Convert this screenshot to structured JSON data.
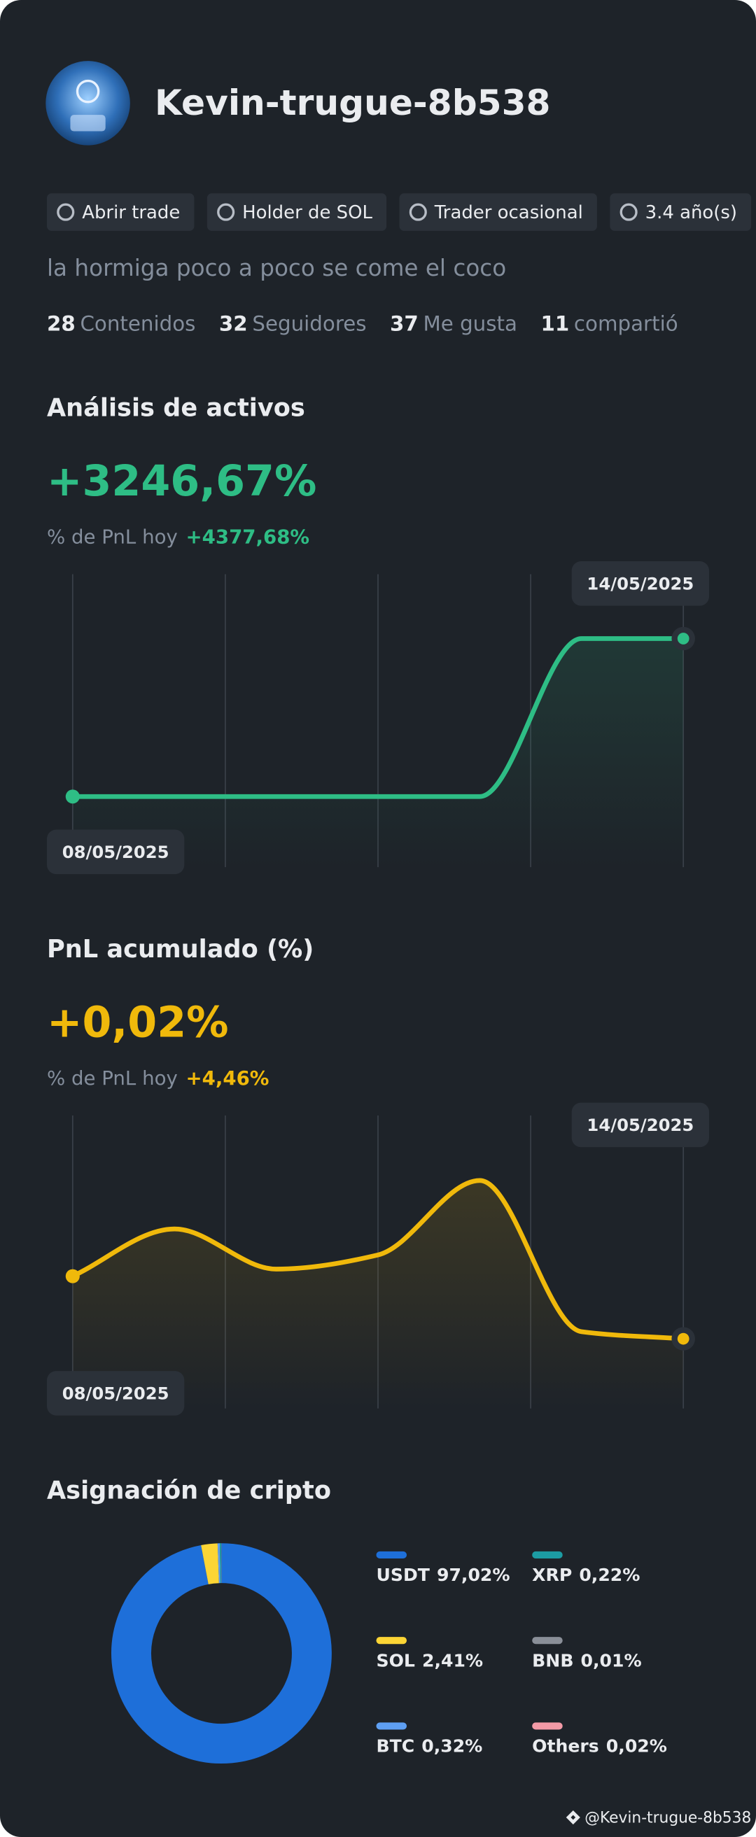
{
  "profile": {
    "name": "Kevin-trugue-8b538",
    "tags": [
      "Abrir trade",
      "Holder de SOL",
      "Trader ocasional",
      "3.4 año(s)"
    ],
    "bio": "la hormiga poco a poco se come el coco",
    "stats": [
      {
        "value": 28,
        "label": "Contenidos"
      },
      {
        "value": 32,
        "label": "Seguidores"
      },
      {
        "value": 37,
        "label": "Me gusta"
      },
      {
        "value": 11,
        "label": "compartió"
      }
    ]
  },
  "chart_data": [
    {
      "type": "line",
      "title": "Análisis de activos",
      "headline": "+3246,67%",
      "today_label": "% de PnL hoy",
      "today_value": "+4377,68%",
      "x": [
        "08/05/2025",
        null,
        null,
        null,
        null,
        null,
        "14/05/2025"
      ],
      "series": [
        {
          "color": "#2ebd85",
          "values": [
            0,
            0,
            0,
            0,
            0,
            3246.67,
            3246.67
          ]
        }
      ],
      "ylim": [
        -1450,
        4570
      ]
    },
    {
      "type": "line",
      "title": "PnL acumulado (%)",
      "headline": "+0,02%",
      "today_label": "% de PnL hoy",
      "today_value": "+4,46%",
      "x": [
        "08/05/2025",
        null,
        null,
        null,
        null,
        null,
        "14/05/2025"
      ],
      "series": [
        {
          "color": "#f0b90b",
          "values": [
            2.67,
            4.67,
            2.97,
            3.57,
            6.72,
            0.32,
            0.02
          ]
        }
      ],
      "ylim": [
        -2.93,
        9.47
      ]
    },
    {
      "type": "pie",
      "title": "Asignación de cripto",
      "categories": [
        "USDT",
        "SOL",
        "BTC",
        "XRP",
        "BNB",
        "Others"
      ],
      "values": [
        97.02,
        2.41,
        0.32,
        0.22,
        0.01,
        0.02
      ],
      "value_labels": [
        "97,02%",
        "2,41%",
        "0,32%",
        "0,22%",
        "0,01%",
        "0,02%"
      ],
      "colors": [
        "#1e6fd9",
        "#fcd535",
        "#5e9ff2",
        "#1c9ca3",
        "#8a8f98",
        "#f39aa6"
      ]
    }
  ],
  "watermark": "@Kevin-trugue-8b538"
}
